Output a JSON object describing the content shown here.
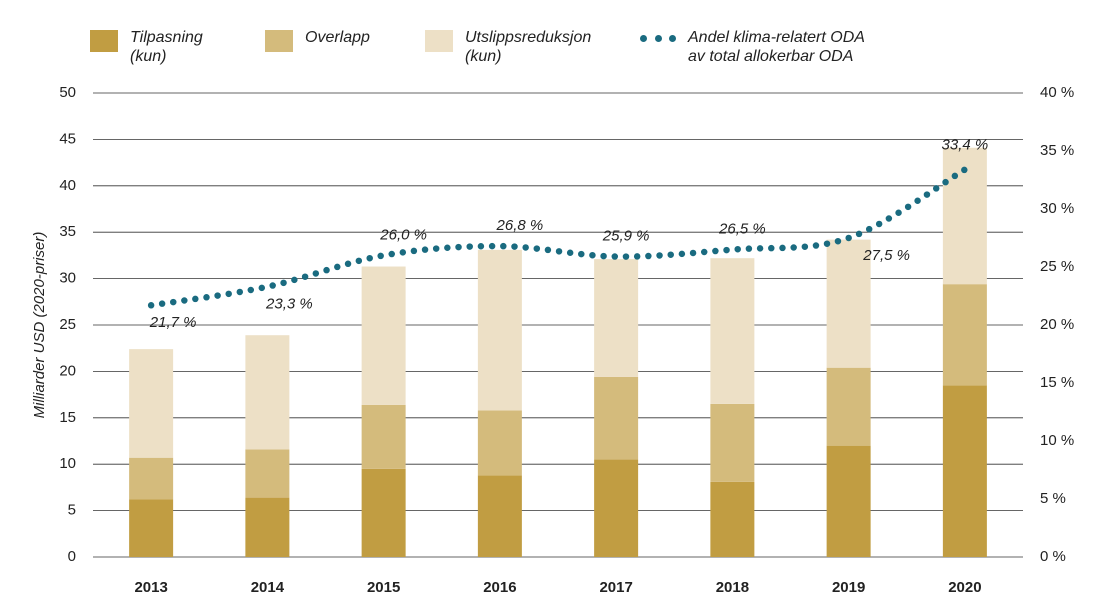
{
  "chart_data": {
    "type": "bar",
    "categories": [
      "2013",
      "2014",
      "2015",
      "2016",
      "2017",
      "2018",
      "2019",
      "2020"
    ],
    "series": [
      {
        "name": "Tilpasning\n(kun)",
        "color": "#c19d42",
        "values": [
          6.2,
          6.4,
          9.5,
          8.8,
          10.5,
          8.1,
          12.0,
          18.5
        ]
      },
      {
        "name": "Overlapp",
        "color": "#d4bb7c",
        "values": [
          4.5,
          5.2,
          6.9,
          7.0,
          8.9,
          8.4,
          8.4,
          10.9
        ]
      },
      {
        "name": "Utslippsreduksjon\n(kun)",
        "color": "#ede0c6",
        "values": [
          11.7,
          12.3,
          14.9,
          17.3,
          12.7,
          15.7,
          13.8,
          14.7
        ]
      },
      {
        "name": "Andel klima-relatert ODA\nav total allokerbar ODA",
        "color": "#1a6b80",
        "type": "line",
        "axis": "y2",
        "values": [
          21.7,
          23.3,
          26.0,
          26.8,
          25.9,
          26.5,
          27.5,
          33.4
        ],
        "value_labels": [
          "21,7 %",
          "23,3 %",
          "26,0 %",
          "26,8 %",
          "25,9 %",
          "26,5 %",
          "27,5 %",
          "33,4 %"
        ]
      }
    ],
    "ylabel": "Milliarder USD (2020-priser)",
    "ylim": [
      0,
      50
    ],
    "yticks": [
      0,
      5,
      10,
      15,
      20,
      25,
      30,
      35,
      40,
      45,
      50
    ],
    "y2lim": [
      0,
      40
    ],
    "y2ticks": [
      {
        "value": 0,
        "label": "0 %"
      },
      {
        "value": 5,
        "label": "5 %"
      },
      {
        "value": 10,
        "label": "10 %"
      },
      {
        "value": 15,
        "label": "15 %"
      },
      {
        "value": 20,
        "label": "20 %"
      },
      {
        "value": 25,
        "label": "25 %"
      },
      {
        "value": 30,
        "label": "30 %"
      },
      {
        "value": 35,
        "label": "35 %"
      },
      {
        "value": 40,
        "label": "40 %"
      }
    ],
    "grid": true,
    "legend": "top"
  }
}
